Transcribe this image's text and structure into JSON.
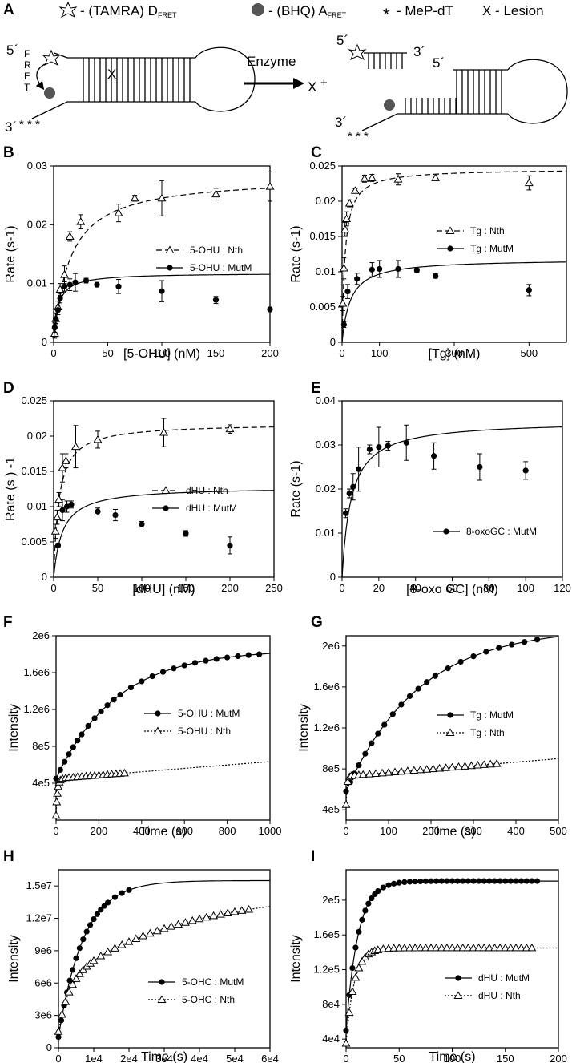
{
  "legend_A": {
    "donor": "- (TAMRA) D",
    "donor_sub": "FRET",
    "acceptor": "- (BHQ)  A",
    "acceptor_sub": "FRET",
    "mep": "- MeP-dT",
    "lesion": "X - Lesion"
  },
  "schematic": {
    "five_prime": "5´",
    "three_prime": "3´",
    "fret_label": [
      "F",
      "R",
      "E",
      "T"
    ],
    "lesion_mark": "X",
    "enzyme_label": "Enzyme",
    "product_lesion": "X",
    "plus": "+",
    "stars": "* * *"
  },
  "colors": {
    "line": "#000000",
    "acceptor": "#555555"
  },
  "chart_data": [
    {
      "panel": "B",
      "type": "scatter",
      "xlabel": "[5-OHU] (nM)",
      "ylabel": "Rate (s-1)",
      "xlim": [
        0,
        200
      ],
      "ylim": [
        0,
        0.03
      ],
      "xticks": [
        0,
        50,
        100,
        150,
        200
      ],
      "xtick_labels": [
        "0",
        "50",
        "100",
        "150",
        "200"
      ],
      "yticks": [
        0,
        0.01,
        0.02,
        0.03
      ],
      "ytick_labels": [
        "0",
        "0.01",
        "0.02",
        "0.03"
      ],
      "legend_pos": "right",
      "series": [
        {
          "name": "5-OHU : Nth",
          "marker": "triangle",
          "line": "dashed",
          "x": [
            1,
            2,
            4,
            6,
            10,
            15,
            25,
            60,
            75,
            100,
            150,
            200
          ],
          "y": [
            0.0015,
            0.004,
            0.006,
            0.009,
            0.0115,
            0.018,
            0.0205,
            0.022,
            0.0245,
            0.0245,
            0.0252,
            0.0265
          ],
          "err": [
            0.0008,
            0.001,
            0.001,
            0.001,
            0.0015,
            0.0008,
            0.0012,
            0.0015,
            0.0005,
            0.003,
            0.001,
            0.0025
          ],
          "fit": {
            "vmax": 0.0282,
            "km": 15
          }
        },
        {
          "name": "5-OHU : MutM",
          "marker": "circle",
          "line": "solid",
          "x": [
            1,
            2,
            4,
            6,
            10,
            15,
            20,
            30,
            40,
            60,
            100,
            150,
            200
          ],
          "y": [
            0.0025,
            0.004,
            0.0055,
            0.0075,
            0.0095,
            0.0098,
            0.0102,
            0.0105,
            0.0098,
            0.0095,
            0.0087,
            0.0072,
            0.0056
          ],
          "err": [
            0.0008,
            0.0008,
            0.0008,
            0.0008,
            0.0008,
            0.001,
            0.0015,
            0.0004,
            0.0004,
            0.0012,
            0.0018,
            0.0006,
            0.0004
          ],
          "fit": {
            "vmax": 0.0118,
            "km": 4
          }
        }
      ]
    },
    {
      "panel": "C",
      "type": "scatter",
      "xlabel": "[Tg] (nM)",
      "ylabel": "Rate (s-1)",
      "xlim": [
        0,
        600
      ],
      "ylim": [
        0,
        0.025
      ],
      "xticks": [
        0,
        100,
        300,
        500
      ],
      "xtick_labels": [
        "0",
        "100",
        "300",
        "500"
      ],
      "yticks": [
        0,
        0.005,
        0.01,
        0.015,
        0.02,
        0.025
      ],
      "ytick_labels": [
        "0",
        "0.005",
        "0.01",
        "0.015",
        "0.02",
        "0.025"
      ],
      "legend_pos": "right",
      "series": [
        {
          "name": "Tg : Nth",
          "marker": "triangle",
          "line": "dashed",
          "x": [
            2,
            5,
            8,
            12,
            20,
            35,
            60,
            80,
            150,
            250,
            500
          ],
          "y": [
            0.0055,
            0.0105,
            0.016,
            0.0175,
            0.0197,
            0.0215,
            0.0232,
            0.0233,
            0.0231,
            0.0233,
            0.0226
          ],
          "err": [
            0.001,
            0.0015,
            0.001,
            0.001,
            0.0005,
            0.0003,
            0.0005,
            0.0005,
            0.0008,
            0.0003,
            0.001
          ],
          "fit": {
            "vmax": 0.0246,
            "km": 8
          }
        },
        {
          "name": "Tg : MutM",
          "marker": "circle",
          "line": "solid",
          "x": [
            5,
            15,
            40,
            80,
            100,
            150,
            200,
            250,
            500
          ],
          "y": [
            0.0025,
            0.0072,
            0.009,
            0.0103,
            0.0104,
            0.0104,
            0.0102,
            0.0094,
            0.0074
          ],
          "err": [
            0.0004,
            0.001,
            0.0008,
            0.001,
            0.0012,
            0.0012,
            0.0003,
            0.0003,
            0.0008
          ],
          "fit": {
            "vmax": 0.0118,
            "km": 22
          }
        }
      ]
    },
    {
      "panel": "D",
      "type": "scatter",
      "xlabel": "[dHU] (nM)",
      "ylabel": "Rate (s ) -1",
      "xlim": [
        0,
        250
      ],
      "ylim": [
        0,
        0.025
      ],
      "xticks": [
        0,
        50,
        100,
        150,
        200,
        250
      ],
      "xtick_labels": [
        "0",
        "50",
        "100",
        "150",
        "200",
        "250"
      ],
      "yticks": [
        0,
        0.005,
        0.01,
        0.015,
        0.02,
        0.025
      ],
      "ytick_labels": [
        "0",
        "0.005",
        "0.01",
        "0.015",
        "0.02",
        "0.025"
      ],
      "legend_pos": "right",
      "series": [
        {
          "name": "dHU : Nth",
          "marker": "triangle",
          "line": "dashed",
          "x": [
            2,
            4,
            6,
            10,
            14,
            25,
            50,
            125,
            200
          ],
          "y": [
            0.0065,
            0.0085,
            0.011,
            0.0155,
            0.0165,
            0.0185,
            0.0195,
            0.0205,
            0.021
          ],
          "err": [
            0.001,
            0.001,
            0.001,
            0.002,
            0.001,
            0.003,
            0.0012,
            0.002,
            0.0006
          ],
          "fit": {
            "vmax": 0.0218,
            "km": 6
          }
        },
        {
          "name": "dHU : MutM",
          "marker": "circle",
          "line": "solid",
          "x": [
            5,
            10,
            15,
            20,
            50,
            70,
            100,
            150,
            200
          ],
          "y": [
            0.0045,
            0.0095,
            0.01,
            0.0103,
            0.0093,
            0.0088,
            0.0075,
            0.0062,
            0.0045
          ],
          "err": [
            0.0003,
            0.0015,
            0.0008,
            0.0005,
            0.0005,
            0.0008,
            0.0004,
            0.0004,
            0.0012
          ],
          "fit": {
            "vmax": 0.0128,
            "km": 10
          }
        }
      ]
    },
    {
      "panel": "E",
      "type": "scatter",
      "xlabel": "[8-oxo GC] (nM)",
      "ylabel": "Rate (s-1)",
      "xlim": [
        0,
        120
      ],
      "ylim": [
        0,
        0.04
      ],
      "xticks": [
        0,
        20,
        40,
        60,
        80,
        100,
        120
      ],
      "xtick_labels": [
        "0",
        "20",
        "40",
        "60",
        "80",
        "100",
        "120"
      ],
      "yticks": [
        0,
        0.01,
        0.02,
        0.03,
        0.04
      ],
      "ytick_labels": [
        "0",
        "0.01",
        "0.02",
        "0.03",
        "0.04"
      ],
      "legend_pos": "lower-right",
      "series": [
        {
          "name": "8-oxoGC : MutM",
          "marker": "circle",
          "line": "solid",
          "x": [
            2,
            4,
            6,
            9,
            15,
            20,
            25,
            35,
            50,
            75,
            100
          ],
          "y": [
            0.0145,
            0.019,
            0.0205,
            0.0245,
            0.029,
            0.0295,
            0.0298,
            0.0305,
            0.0275,
            0.025,
            0.0242
          ],
          "err": [
            0.001,
            0.001,
            0.003,
            0.005,
            0.001,
            0.0045,
            0.001,
            0.004,
            0.003,
            0.003,
            0.002
          ],
          "fit": {
            "vmax": 0.0355,
            "km": 5
          }
        }
      ]
    },
    {
      "panel": "F",
      "type": "line",
      "xlabel": "Time (s)",
      "ylabel": "Intensity",
      "xlim": [
        0,
        1000
      ],
      "ylim": [
        0,
        2000000
      ],
      "xticks": [
        0,
        200,
        400,
        600,
        800,
        1000
      ],
      "xtick_labels": [
        "0",
        "200",
        "400",
        "600",
        "800",
        "1000"
      ],
      "yticks": [
        400000,
        800000,
        1200000,
        1600000,
        2000000
      ],
      "ytick_labels": [
        "4e5",
        "8e5",
        "1.2e6",
        "1.6e6",
        "2e6"
      ],
      "legend_pos": "right",
      "series": [
        {
          "name": "5-OHU : MutM",
          "marker": "circle",
          "line": "solid",
          "fit": {
            "type": "exp",
            "y0": 450000,
            "a": 1400000,
            "k": 0.0035
          },
          "x": [
            0,
            20,
            40,
            60,
            80,
            100,
            120,
            150,
            180,
            210,
            240,
            270,
            300,
            350,
            400,
            450,
            500,
            550,
            600,
            650,
            700,
            750,
            800,
            850,
            900,
            950
          ]
        },
        {
          "name": "5-OHU : Nth",
          "marker": "triangle",
          "line": "dotted",
          "fit": {
            "type": "explin",
            "y0": 50000,
            "a": 400000,
            "k": 0.15,
            "m": 185
          },
          "x": [
            0,
            3,
            6,
            10,
            15,
            20,
            30,
            45,
            60,
            80,
            100,
            120,
            140,
            160,
            180,
            200,
            220,
            240,
            260,
            280,
            300,
            320
          ]
        }
      ]
    },
    {
      "panel": "G",
      "type": "line",
      "xlabel": "Time (s)",
      "ylabel": "Intensity",
      "xlim": [
        0,
        500
      ],
      "ylim": [
        300000,
        2100000
      ],
      "xticks": [
        0,
        100,
        200,
        300,
        400,
        500
      ],
      "xtick_labels": [
        "0",
        "100",
        "200",
        "300",
        "400",
        "500"
      ],
      "yticks": [
        400000,
        800000,
        1200000,
        1600000,
        2000000
      ],
      "ytick_labels": [
        "4e5",
        "8e5",
        "1.2e6",
        "1.6e6",
        "2e6"
      ],
      "legend_pos": "right",
      "series": [
        {
          "name": "Tg : MutM",
          "marker": "circle",
          "line": "solid",
          "fit": {
            "type": "exp",
            "y0": 580000,
            "a": 1600000,
            "k": 0.0058
          },
          "x": [
            0,
            10,
            20,
            30,
            45,
            60,
            75,
            90,
            110,
            130,
            150,
            170,
            190,
            210,
            240,
            270,
            300,
            330,
            360,
            390,
            420,
            450
          ]
        },
        {
          "name": "Tg : Nth",
          "marker": "triangle",
          "line": "dotted",
          "fit": {
            "type": "explin",
            "y0": 450000,
            "a": 280000,
            "k": 0.4,
            "m": 340
          },
          "x": [
            0,
            4,
            8,
            12,
            20,
            30,
            40,
            55,
            70,
            85,
            100,
            115,
            130,
            145,
            160,
            175,
            190,
            205,
            220,
            235,
            250,
            265,
            280,
            295,
            310,
            325,
            340,
            355
          ]
        }
      ]
    },
    {
      "panel": "H",
      "type": "line",
      "xlabel": "Time (s)",
      "ylabel": "Intensity",
      "xlim": [
        0,
        60000
      ],
      "ylim": [
        0,
        16500000
      ],
      "xticks": [
        0,
        10000,
        20000,
        30000,
        40000,
        50000,
        60000
      ],
      "xtick_labels": [
        "0",
        "1e4",
        "2e4",
        "3e4",
        "4e4",
        "5e4",
        "6e4"
      ],
      "yticks": [
        0,
        3000000,
        6000000,
        9000000,
        12000000,
        15000000
      ],
      "ytick_labels": [
        "0",
        "3e6",
        "6e6",
        "9e6",
        "1.2e7",
        "1.5e7"
      ],
      "legend_pos": "lower-right",
      "series": [
        {
          "name": "5-OHC : MutM",
          "marker": "circle",
          "line": "solid",
          "fit": {
            "type": "exp",
            "y0": 1000000,
            "a": 14500000,
            "k": 0.00014
          },
          "x": [
            0,
            800,
            1600,
            2400,
            3200,
            4000,
            5000,
            6000,
            7000,
            8000,
            9000,
            10000,
            11000,
            12000,
            13000,
            14000,
            16000,
            18000,
            20000
          ]
        },
        {
          "name": "5-OHC : Nth",
          "marker": "triangle",
          "line": "dotted",
          "fit": {
            "type": "sum",
            "y0": 1500000,
            "a1": 4500000,
            "k1": 0.00035,
            "a2": 8500000,
            "k2": 3e-05
          },
          "x": [
            0,
            1000,
            2000,
            3000,
            4000,
            5000,
            6000,
            7000,
            8000,
            9000,
            10000,
            12000,
            14000,
            16000,
            18000,
            20000,
            22000,
            24000,
            26000,
            28000,
            30000,
            32000,
            34000,
            36000,
            38000,
            40000,
            42000,
            44000,
            46000,
            48000,
            50000,
            52000,
            54000
          ]
        }
      ]
    },
    {
      "panel": "I",
      "type": "line",
      "xlabel": "Time (s)",
      "ylabel": "Intensity",
      "xlim": [
        0,
        200
      ],
      "ylim": [
        30000,
        235000
      ],
      "xticks": [
        0,
        50,
        100,
        150,
        200
      ],
      "xtick_labels": [
        "0",
        "50",
        "100",
        "150",
        "200"
      ],
      "yticks": [
        40000,
        80000,
        120000,
        160000,
        200000
      ],
      "ytick_labels": [
        "4e4",
        "8e4",
        "1.2e5",
        "1.6e5",
        "2e5"
      ],
      "legend_pos": "lower-right",
      "series": [
        {
          "name": "dHU : MutM",
          "marker": "circle",
          "line": "solid",
          "fit": {
            "type": "exp",
            "y0": 50000,
            "a": 172000,
            "k": 0.09
          },
          "x": [
            0,
            3,
            6,
            9,
            12,
            15,
            18,
            21,
            24,
            27,
            30,
            35,
            40,
            45,
            50,
            55,
            60,
            65,
            70,
            75,
            80,
            85,
            90,
            95,
            100,
            105,
            110,
            115,
            120,
            125,
            130,
            135,
            140,
            145,
            150,
            155,
            160,
            165,
            170,
            175,
            180
          ]
        },
        {
          "name": "dHU : Nth",
          "marker": "triangle",
          "line": "dotted",
          "fit": {
            "type": "exp",
            "y0": 35000,
            "a": 110000,
            "k": 0.13
          },
          "x": [
            0,
            3,
            6,
            9,
            12,
            15,
            18,
            21,
            24,
            27,
            30,
            35,
            40,
            45,
            50,
            55,
            60,
            65,
            70,
            75,
            80,
            85,
            90,
            95,
            100,
            105,
            110,
            115,
            120,
            125,
            130,
            135,
            140,
            145,
            150,
            155,
            160,
            165,
            170,
            175
          ]
        }
      ]
    }
  ]
}
